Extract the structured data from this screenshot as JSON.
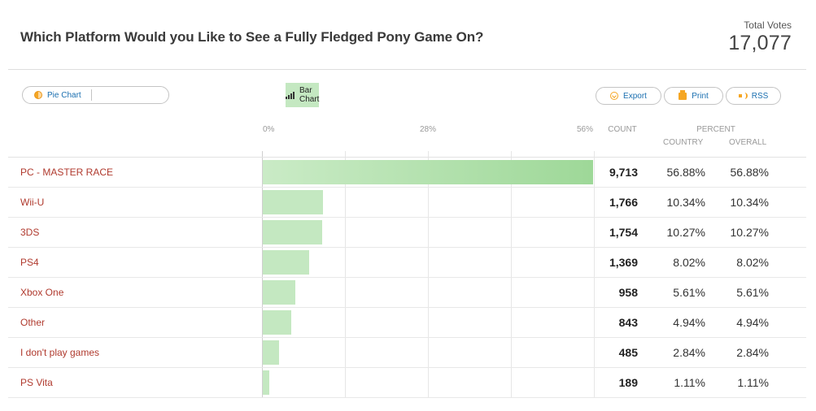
{
  "header": {
    "title": "Which Platform Would you Like to See a Fully Fledged Pony Game On?",
    "total_label": "Total Votes",
    "total_value": "17,077"
  },
  "toolbar": {
    "pie_label": "Pie Chart",
    "bar_label": "Bar Chart",
    "export_label": "Export",
    "print_label": "Print",
    "rss_label": "RSS",
    "pie_icon": "pie-chart-icon",
    "bar_icon": "bar-chart-icon",
    "export_icon": "download-icon",
    "print_icon": "printer-icon",
    "rss_icon": "rss-feed-icon"
  },
  "columns": {
    "count": "COUNT",
    "percent": "PERCENT",
    "country": "COUNTRY",
    "overall": "OVERALL"
  },
  "colors": {
    "label": "#b03a2e",
    "bar": "#c4e8c1",
    "link": "#1a6fb0",
    "icon_accent": "#f5a623"
  },
  "chart_data": {
    "type": "bar",
    "orientation": "horizontal",
    "xticks": [
      "0%",
      "28%",
      "56%"
    ],
    "xlim": [
      0,
      56
    ],
    "grid": true,
    "rows": [
      {
        "label": "PC - MASTER RACE",
        "count": "9,713",
        "country": "56.88%",
        "overall": "56.88%",
        "value": 56.88
      },
      {
        "label": "Wii-U",
        "count": "1,766",
        "country": "10.34%",
        "overall": "10.34%",
        "value": 10.34
      },
      {
        "label": "3DS",
        "count": "1,754",
        "country": "10.27%",
        "overall": "10.27%",
        "value": 10.27
      },
      {
        "label": "PS4",
        "count": "1,369",
        "country": "8.02%",
        "overall": "8.02%",
        "value": 8.02
      },
      {
        "label": "Xbox One",
        "count": "958",
        "country": "5.61%",
        "overall": "5.61%",
        "value": 5.61
      },
      {
        "label": "Other",
        "count": "843",
        "country": "4.94%",
        "overall": "4.94%",
        "value": 4.94
      },
      {
        "label": "I don't play games",
        "count": "485",
        "country": "2.84%",
        "overall": "2.84%",
        "value": 2.84
      },
      {
        "label": "PS Vita",
        "count": "189",
        "country": "1.11%",
        "overall": "1.11%",
        "value": 1.11
      }
    ]
  }
}
